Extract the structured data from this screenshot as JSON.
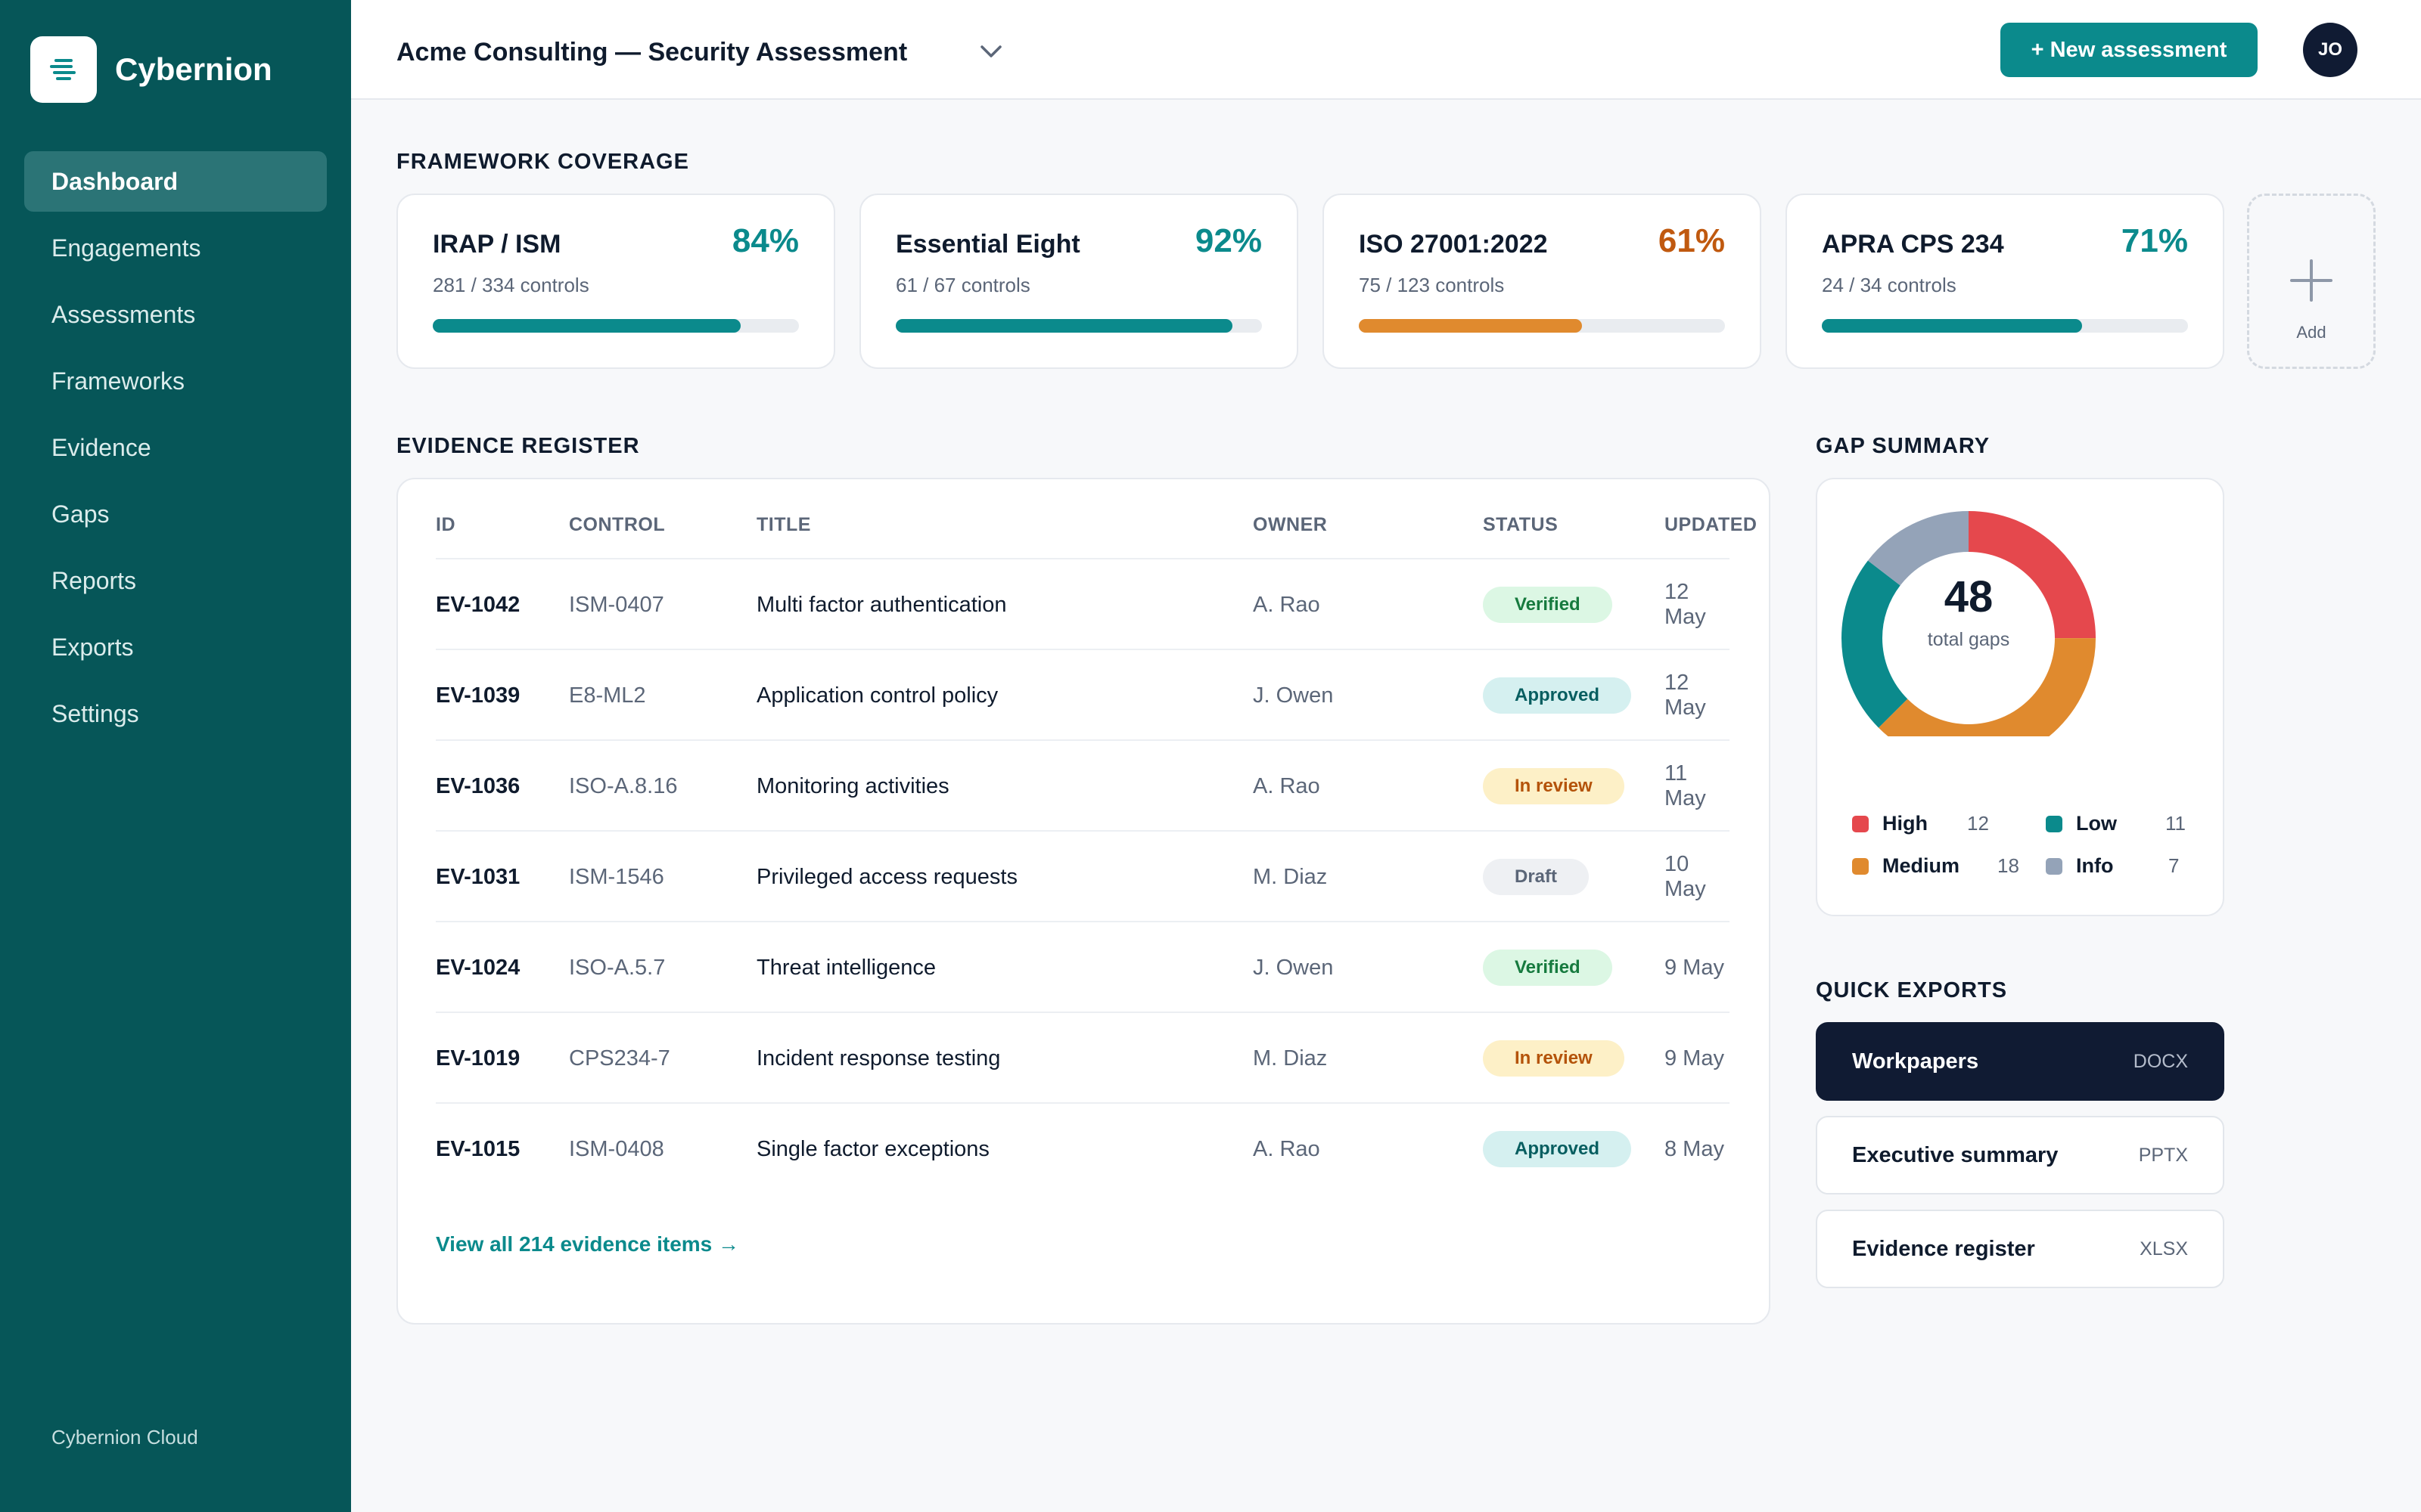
{
  "brand": {
    "name": "Cybernion",
    "logo_icon": "stacked-lines-logo-icon",
    "footer": "Cybernion Cloud"
  },
  "nav": {
    "items": [
      {
        "label": "Dashboard",
        "active": true
      },
      {
        "label": "Engagements"
      },
      {
        "label": "Assessments"
      },
      {
        "label": "Frameworks"
      },
      {
        "label": "Evidence"
      },
      {
        "label": "Gaps"
      },
      {
        "label": "Reports"
      },
      {
        "label": "Exports"
      },
      {
        "label": "Settings"
      }
    ]
  },
  "header": {
    "title": "Acme Consulting — Security Assessment",
    "new_button": "+ New assessment",
    "avatar_initials": "JO"
  },
  "colors": {
    "sidebar": "#065658",
    "accent": "#0b8a8c",
    "warning": "#e08a2e",
    "warning_text": "#c0590f",
    "danger": "#e5484d",
    "muted": "#94a3b8",
    "dark": "#101b33"
  },
  "framework_coverage": {
    "title": "FRAMEWORK COVERAGE",
    "cards": [
      {
        "name": "IRAP / ISM",
        "percent_label": "84%",
        "controls": "281 / 334 controls",
        "progress": 0.84,
        "tone": "ok"
      },
      {
        "name": "Essential Eight",
        "percent_label": "92%",
        "controls": "61 / 67 controls",
        "progress": 0.92,
        "tone": "ok"
      },
      {
        "name": "ISO 27001:2022",
        "percent_label": "61%",
        "controls": "75 / 123 controls",
        "progress": 0.61,
        "tone": "warn"
      },
      {
        "name": "APRA CPS 234",
        "percent_label": "71%",
        "controls": "24 / 34 controls",
        "progress": 0.71,
        "tone": "ok"
      }
    ],
    "add_label": "Add"
  },
  "evidence": {
    "title": "EVIDENCE REGISTER",
    "columns": {
      "id": "ID",
      "control": "CONTROL",
      "title": "TITLE",
      "owner": "OWNER",
      "status": "STATUS",
      "updated": "UPDATED"
    },
    "rows": [
      {
        "id": "EV-1042",
        "control": "ISM-0407",
        "title": "Multi factor authentication",
        "owner": "A. Rao",
        "status": "Verified",
        "updated": "12 May"
      },
      {
        "id": "EV-1039",
        "control": "E8-ML2",
        "title": "Application control policy",
        "owner": "J. Owen",
        "status": "Approved",
        "updated": "12 May"
      },
      {
        "id": "EV-1036",
        "control": "ISO-A.8.16",
        "title": "Monitoring activities",
        "owner": "A. Rao",
        "status": "In review",
        "updated": "11 May"
      },
      {
        "id": "EV-1031",
        "control": "ISM-1546",
        "title": "Privileged access requests",
        "owner": "M. Diaz",
        "status": "Draft",
        "updated": "10 May"
      },
      {
        "id": "EV-1024",
        "control": "ISO-A.5.7",
        "title": "Threat intelligence",
        "owner": "J. Owen",
        "status": "Verified",
        "updated": "9 May"
      },
      {
        "id": "EV-1019",
        "control": "CPS234-7",
        "title": "Incident response testing",
        "owner": "M. Diaz",
        "status": "In review",
        "updated": "9 May"
      },
      {
        "id": "EV-1015",
        "control": "ISM-0408",
        "title": "Single factor exceptions",
        "owner": "A. Rao",
        "status": "Approved",
        "updated": "8 May"
      }
    ],
    "status_styles": {
      "Verified": {
        "bg": "#dcf7e4",
        "fg": "#167a3e"
      },
      "Approved": {
        "bg": "#d5f0f0",
        "fg": "#075e60"
      },
      "In review": {
        "bg": "#fdf0c7",
        "fg": "#b4530a"
      },
      "Draft": {
        "bg": "#eef0f3",
        "fg": "#5b6678"
      }
    },
    "view_all": "View all 214 evidence items →"
  },
  "gap_summary": {
    "title": "GAP SUMMARY",
    "total": "48",
    "total_label": "total gaps",
    "segments": [
      {
        "name": "High",
        "count": 12,
        "color": "#e5484d"
      },
      {
        "name": "Medium",
        "count": 18,
        "color": "#e08a2e"
      },
      {
        "name": "Low",
        "count": 11,
        "color": "#0b8a8c"
      },
      {
        "name": "Info",
        "count": 7,
        "color": "#94a3b8"
      }
    ]
  },
  "quick_exports": {
    "title": "QUICK EXPORTS",
    "items": [
      {
        "name": "Workpapers",
        "format": "DOCX"
      },
      {
        "name": "Executive summary",
        "format": "PPTX"
      },
      {
        "name": "Evidence register",
        "format": "XLSX"
      }
    ]
  }
}
